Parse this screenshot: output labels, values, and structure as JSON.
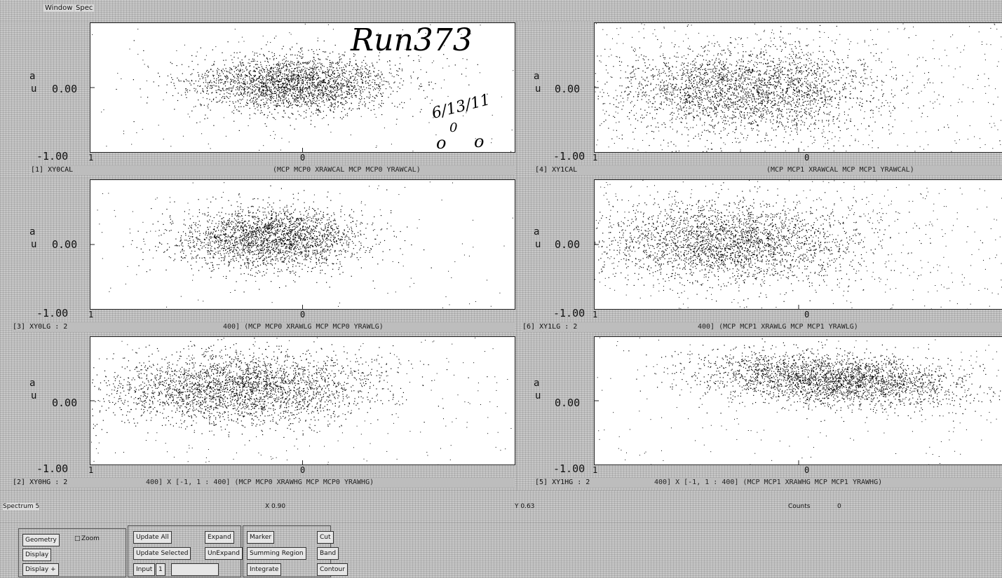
{
  "menubar": {
    "window": "Window",
    "spec": "Spec"
  },
  "panels": [
    {
      "id": "p1",
      "y_label_a": "a",
      "y_label_u": "u",
      "y_tick_zero": "0.00",
      "y_tick_min": "-1.00",
      "x_tick_min": "1",
      "x_tick_mid": "0",
      "caption_left": "[1] XY0CAL",
      "caption_right": "(MCP MCP0 XRAWCAL MCP MCP0 YRAWCAL)"
    },
    {
      "id": "p4",
      "y_label_a": "a",
      "y_label_u": "u",
      "y_tick_zero": "0.00",
      "y_tick_min": "-1.00",
      "x_tick_min": "1",
      "x_tick_mid": "0",
      "caption_left": "[4] XY1CAL",
      "caption_right": "(MCP MCP1 XRAWCAL MCP MCP1 YRAWCAL)"
    },
    {
      "id": "p3",
      "y_label_a": "a",
      "y_label_u": "u",
      "y_tick_zero": "0.00",
      "y_tick_min": "-1.00",
      "x_tick_min": "1",
      "x_tick_mid": "0",
      "caption_left": "[3] XY0LG : 2",
      "caption_right": "400] (MCP MCP0 XRAWLG MCP MCP0 YRAWLG)"
    },
    {
      "id": "p6",
      "y_label_a": "a",
      "y_label_u": "u",
      "y_tick_zero": "0.00",
      "y_tick_min": "-1.00",
      "x_tick_min": "1",
      "x_tick_mid": "0",
      "caption_left": "[6] XY1LG : 2",
      "caption_right": "400] (MCP MCP1 XRAWLG MCP MCP1 YRAWLG)"
    },
    {
      "id": "p2",
      "y_label_a": "a",
      "y_label_u": "u",
      "y_tick_zero": "0.00",
      "y_tick_min": "-1.00",
      "x_tick_min": "1",
      "x_tick_mid": "0",
      "caption_left": "[2] XY0HG : 2",
      "caption_right": "400] X [-1, 1 : 400] (MCP MCP0 XRAWHG MCP MCP0 YRAWHG)"
    },
    {
      "id": "p5",
      "y_label_a": "a",
      "y_label_u": "u",
      "y_tick_zero": "0.00",
      "y_tick_min": "-1.00",
      "x_tick_min": "1",
      "x_tick_mid": "0",
      "caption_left": "[5] XY1HG : 2",
      "caption_right": "400] X [-1, 1 : 400] (MCP MCP1 XRAWHG MCP MCP1 YRAWHG)"
    }
  ],
  "handwriting": {
    "run": "Run373",
    "date": "6/13/11",
    "digits": "0",
    "circles_a": "o",
    "circles_b": "o"
  },
  "status": {
    "spectrum": "Spectrum 5",
    "x": "X 0.90",
    "y": "Y 0.63",
    "counts": "Counts",
    "counts_value": "0"
  },
  "controls": {
    "geometry": "Geometry",
    "zoom": "Zoom",
    "display": "Display",
    "display_menu": "Display +",
    "update_all": "Update All",
    "update_selected": "Update Selected",
    "expand": "Expand",
    "unexpand": "UnExpand",
    "input": "Input",
    "input_val": "1",
    "marker": "Marker",
    "summing_region": "Summing Region",
    "integrate": "Integrate",
    "cut": "Cut",
    "band": "Band",
    "contour": "Contour"
  },
  "colors": {
    "background": "#cfcfcf",
    "plot_bg": "#ffffff",
    "dots": "#000000"
  }
}
